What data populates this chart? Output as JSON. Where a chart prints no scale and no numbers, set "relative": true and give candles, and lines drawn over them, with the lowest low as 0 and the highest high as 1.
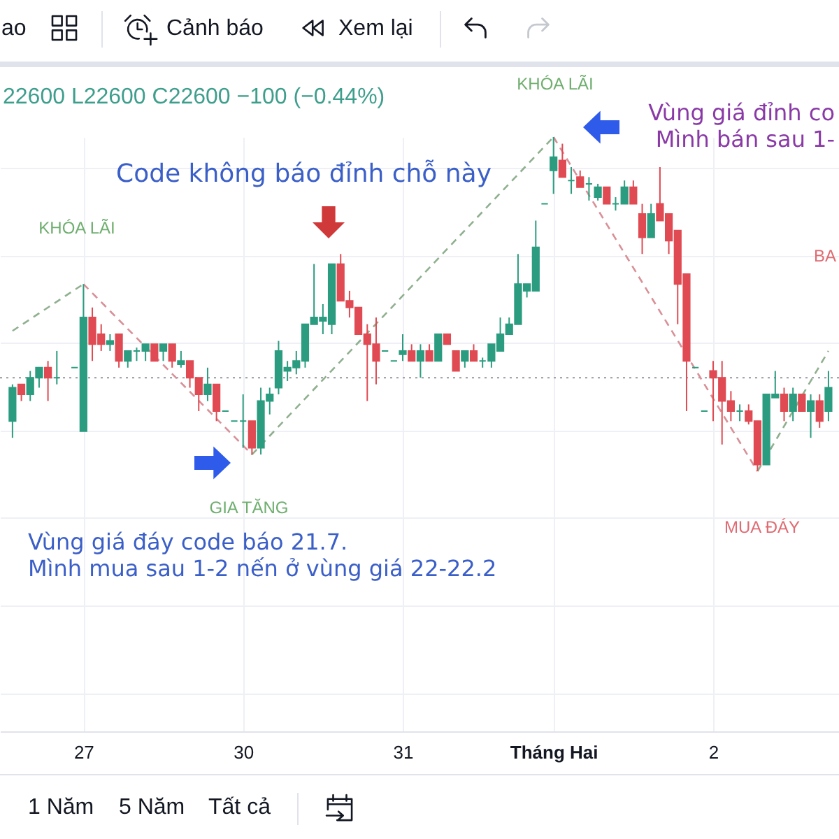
{
  "chart_data": {
    "type": "candlestick",
    "relative": true,
    "grid": true,
    "categories": [
      null,
      null,
      null,
      null,
      null,
      null,
      null,
      null,
      "27",
      null,
      null,
      null,
      null,
      null,
      null,
      null,
      null,
      null,
      null,
      null,
      null,
      null,
      null,
      null,
      null,
      null,
      "30",
      null,
      null,
      null,
      null,
      null,
      null,
      null,
      null,
      null,
      null,
      null,
      null,
      null,
      null,
      null,
      null,
      null,
      "31",
      null,
      null,
      null,
      null,
      null,
      null,
      null,
      null,
      null,
      null,
      null,
      null,
      null,
      null,
      null,
      null,
      "Tháng Hai",
      null,
      null,
      null,
      null,
      null,
      null,
      null,
      null,
      null,
      null,
      null,
      null,
      null,
      null,
      null,
      null,
      null,
      "2",
      null,
      null,
      null,
      null,
      null,
      null,
      null,
      null,
      null,
      null,
      null,
      null,
      null
    ],
    "ohlc": [
      [
        0.15,
        0.26,
        0.1,
        0.25
      ],
      [
        0.26,
        0.26,
        0.21,
        0.23
      ],
      [
        0.23,
        0.3,
        0.21,
        0.28
      ],
      [
        0.28,
        0.31,
        0.25,
        0.31
      ],
      [
        0.31,
        0.33,
        0.21,
        0.28
      ],
      [
        0.28,
        0.36,
        0.26,
        0.28
      ],
      null,
      [
        0.31,
        0.31,
        0.31,
        0.31
      ],
      [
        0.12,
        0.56,
        0.12,
        0.46
      ],
      [
        0.46,
        0.49,
        0.33,
        0.38
      ],
      [
        0.41,
        0.44,
        0.36,
        0.38
      ],
      [
        0.38,
        0.41,
        0.36,
        0.39
      ],
      [
        0.41,
        0.41,
        0.31,
        0.33
      ],
      [
        0.33,
        0.36,
        0.31,
        0.36
      ],
      [
        0.36,
        0.37,
        0.33,
        0.36
      ],
      [
        0.36,
        0.38,
        0.33,
        0.38
      ],
      [
        0.38,
        0.38,
        0.33,
        0.33
      ],
      [
        0.36,
        0.38,
        0.33,
        0.38
      ],
      [
        0.38,
        0.38,
        0.31,
        0.33
      ],
      [
        0.32,
        0.36,
        0.31,
        0.33
      ],
      [
        0.33,
        0.33,
        0.25,
        0.28
      ],
      [
        0.28,
        0.28,
        0.18,
        0.23
      ],
      [
        0.23,
        0.31,
        0.21,
        0.26
      ],
      [
        0.26,
        0.26,
        0.15,
        0.18
      ],
      [
        0.18,
        0.18,
        0.18,
        0.18
      ],
      [
        0.15,
        0.15,
        0.15,
        0.15
      ],
      [
        0.15,
        0.23,
        0.07,
        0.15
      ],
      [
        0.15,
        0.15,
        0.05,
        0.07
      ],
      [
        0.07,
        0.25,
        0.05,
        0.21
      ],
      [
        0.21,
        0.25,
        0.17,
        0.23
      ],
      [
        0.25,
        0.39,
        0.23,
        0.36
      ],
      [
        0.3,
        0.33,
        0.27,
        0.31
      ],
      [
        0.31,
        0.36,
        0.29,
        0.33
      ],
      [
        0.33,
        0.44,
        0.31,
        0.44
      ],
      [
        0.44,
        0.62,
        0.44,
        0.46
      ],
      [
        0.45,
        0.5,
        0.41,
        0.46
      ],
      [
        0.44,
        0.62,
        0.41,
        0.62
      ],
      [
        0.62,
        0.65,
        0.51,
        0.51
      ],
      [
        0.51,
        0.54,
        0.46,
        0.49
      ],
      [
        0.49,
        0.49,
        0.41,
        0.41
      ],
      [
        0.41,
        0.44,
        0.21,
        0.38
      ],
      [
        0.38,
        0.46,
        0.26,
        0.33
      ],
      [
        0.36,
        0.36,
        0.36,
        0.36
      ],
      [
        0.33,
        0.33,
        0.33,
        0.33
      ],
      [
        0.35,
        0.41,
        0.33,
        0.36
      ],
      [
        0.36,
        0.38,
        0.33,
        0.33
      ],
      [
        0.33,
        0.38,
        0.28,
        0.36
      ],
      [
        0.36,
        0.38,
        0.33,
        0.33
      ],
      [
        0.33,
        0.41,
        0.33,
        0.41
      ],
      [
        0.41,
        0.41,
        0.38,
        0.38
      ],
      [
        0.36,
        0.36,
        0.3,
        0.3
      ],
      [
        0.33,
        0.36,
        0.31,
        0.36
      ],
      [
        0.36,
        0.38,
        0.33,
        0.33
      ],
      [
        0.33,
        0.34,
        0.31,
        0.33
      ],
      [
        0.33,
        0.38,
        0.31,
        0.38
      ],
      [
        0.36,
        0.46,
        0.36,
        0.41
      ],
      [
        0.41,
        0.46,
        0.41,
        0.44
      ],
      [
        0.44,
        0.65,
        0.44,
        0.56
      ],
      [
        0.54,
        0.56,
        0.52,
        0.56
      ],
      [
        0.54,
        0.75,
        0.54,
        0.67
      ],
      [
        0.8,
        0.8,
        0.8,
        0.8
      ],
      [
        0.9,
        1.0,
        0.83,
        0.94
      ],
      [
        0.93,
        0.98,
        0.88,
        0.88
      ],
      [
        0.87,
        0.91,
        0.83,
        0.87
      ],
      [
        0.88,
        0.9,
        0.85,
        0.85
      ],
      [
        0.86,
        0.88,
        0.81,
        0.86
      ],
      [
        0.82,
        0.86,
        0.81,
        0.85
      ],
      [
        0.85,
        0.85,
        0.8,
        0.8
      ],
      [
        0.8,
        0.82,
        0.78,
        0.8
      ],
      [
        0.8,
        0.87,
        0.8,
        0.85
      ],
      [
        0.85,
        0.87,
        0.8,
        0.8
      ],
      [
        0.77,
        0.8,
        0.65,
        0.7
      ],
      [
        0.7,
        0.8,
        0.7,
        0.77
      ],
      [
        0.8,
        0.91,
        0.75,
        0.75
      ],
      [
        0.77,
        0.77,
        0.65,
        0.69
      ],
      [
        0.72,
        0.72,
        0.44,
        0.56
      ],
      [
        0.59,
        0.59,
        0.18,
        0.33
      ],
      [
        0.31,
        0.31,
        0.31,
        0.31
      ],
      [
        0.18,
        0.18,
        0.18,
        0.18
      ],
      [
        0.3,
        0.33,
        0.15,
        0.28
      ],
      [
        0.28,
        0.33,
        0.08,
        0.21
      ],
      [
        0.21,
        0.24,
        0.15,
        0.18
      ],
      [
        0.18,
        0.2,
        0.15,
        0.18
      ],
      [
        0.18,
        0.2,
        0.14,
        0.15
      ],
      [
        0.15,
        0.15,
        0.0,
        0.02
      ],
      [
        0.02,
        0.23,
        0.02,
        0.23
      ],
      [
        0.22,
        0.3,
        0.22,
        0.23
      ],
      [
        0.23,
        0.25,
        0.15,
        0.18
      ],
      [
        0.18,
        0.25,
        0.15,
        0.23
      ],
      [
        0.23,
        0.23,
        0.18,
        0.18
      ],
      [
        0.18,
        0.23,
        0.1,
        0.21
      ],
      [
        0.21,
        0.23,
        0.13,
        0.15
      ],
      [
        0.18,
        0.3,
        0.15,
        0.25
      ]
    ],
    "colors": [
      "#2b9c7f",
      "#e04a52",
      "#2b9c7f",
      "#2b9c7f",
      "#e04a52",
      "#2b9c7f",
      null,
      "#2b9c7f",
      "#2b9c7f",
      "#e04a52",
      "#e04a52",
      "#2b9c7f",
      "#e04a52",
      "#2b9c7f",
      "#2b9c7f",
      "#2b9c7f",
      "#e04a52",
      "#2b9c7f",
      "#e04a52",
      "#2b9c7f",
      "#e04a52",
      "#e04a52",
      "#2b9c7f",
      "#e04a52",
      "#2b9c7f",
      "#2b9c7f",
      "#2b9c7f",
      "#e04a52",
      "#2b9c7f",
      "#2b9c7f",
      "#2b9c7f",
      "#2b9c7f",
      "#2b9c7f",
      "#2b9c7f",
      "#2b9c7f",
      "#2b9c7f",
      "#2b9c7f",
      "#e04a52",
      "#e04a52",
      "#e04a52",
      "#e04a52",
      "#e04a52",
      "#2b9c7f",
      "#2b9c7f",
      "#2b9c7f",
      "#e04a52",
      "#2b9c7f",
      "#e04a52",
      "#2b9c7f",
      "#e04a52",
      "#e04a52",
      "#2b9c7f",
      "#e04a52",
      "#2b9c7f",
      "#2b9c7f",
      "#2b9c7f",
      "#2b9c7f",
      "#2b9c7f",
      "#2b9c7f",
      "#2b9c7f",
      "#2b9c7f",
      "#2b9c7f",
      "#e04a52",
      "#2b9c7f",
      "#e04a52",
      "#2b9c7f",
      "#2b9c7f",
      "#e04a52",
      "#2b9c7f",
      "#2b9c7f",
      "#e04a52",
      "#e04a52",
      "#2b9c7f",
      "#e04a52",
      "#e04a52",
      "#e04a52",
      "#e04a52",
      "#2b9c7f",
      "#2b9c7f",
      "#e04a52",
      "#e04a52",
      "#e04a52",
      "#2b9c7f",
      "#e04a52",
      "#e04a52",
      "#2b9c7f",
      "#2b9c7f",
      "#e04a52",
      "#2b9c7f",
      "#e04a52",
      "#2b9c7f",
      "#e04a52",
      "#2b9c7f"
    ],
    "series": [
      {
        "type": "line",
        "color": "#8fb08f",
        "line_style": "dashed",
        "values": [
          0.42,
          null,
          null,
          null,
          null,
          null,
          null,
          null,
          0.56,
          null,
          null,
          null,
          null,
          null,
          null,
          null,
          null,
          null,
          null,
          null,
          null,
          null,
          null,
          null,
          null,
          null,
          null,
          null,
          null,
          null,
          null,
          null,
          null,
          null,
          null,
          null,
          null,
          null,
          null,
          null,
          null,
          null,
          null,
          null,
          null,
          null,
          null,
          null,
          null,
          null,
          null,
          null,
          null,
          null,
          null,
          null,
          null,
          null,
          null,
          null,
          null,
          null,
          null,
          null,
          null,
          null,
          null,
          null,
          null,
          null,
          null,
          null,
          null,
          null,
          null,
          null,
          null,
          null,
          null,
          null,
          null,
          null,
          null,
          null,
          null,
          null,
          null,
          null,
          null,
          null,
          null,
          null,
          null
        ]
      },
      {
        "type": "line",
        "color": "#d99097",
        "line_style": "dashed",
        "values": [
          null,
          null,
          null,
          null,
          null,
          null,
          null,
          null,
          0.56,
          null,
          null,
          null,
          null,
          null,
          null,
          null,
          null,
          null,
          null,
          null,
          null,
          null,
          null,
          null,
          null,
          null,
          null,
          0.05,
          null,
          null,
          null,
          null,
          null,
          null,
          null,
          null,
          null,
          null,
          null,
          null,
          null,
          null,
          null,
          null,
          null,
          null,
          null,
          null,
          null,
          null,
          null,
          null,
          null,
          null,
          null,
          null,
          null,
          null,
          null,
          null,
          null,
          null,
          null,
          null,
          null,
          null,
          null,
          null,
          null,
          null,
          null,
          null,
          null,
          null,
          null,
          null,
          null,
          null,
          null,
          null,
          null,
          null,
          null,
          null,
          null,
          null,
          null,
          null,
          null,
          null,
          null,
          null,
          null
        ]
      },
      {
        "type": "line",
        "color": "#8fb08f",
        "line_style": "dashed",
        "values": [
          null,
          null,
          null,
          null,
          null,
          null,
          null,
          null,
          null,
          null,
          null,
          null,
          null,
          null,
          null,
          null,
          null,
          null,
          null,
          null,
          null,
          null,
          null,
          null,
          null,
          null,
          null,
          0.05,
          null,
          null,
          null,
          null,
          null,
          null,
          null,
          null,
          null,
          null,
          null,
          null,
          null,
          null,
          null,
          null,
          null,
          null,
          null,
          null,
          null,
          null,
          null,
          null,
          null,
          null,
          null,
          null,
          null,
          null,
          null,
          null,
          null,
          1.0,
          null,
          null,
          null,
          null,
          null,
          null,
          null,
          null,
          null,
          null,
          null,
          null,
          null,
          null,
          null,
          null,
          null,
          null,
          null,
          null,
          null,
          null,
          null,
          null,
          null,
          null,
          null,
          null,
          null,
          null,
          null
        ]
      },
      {
        "type": "line",
        "color": "#d99097",
        "line_style": "dashed",
        "values": [
          null,
          null,
          null,
          null,
          null,
          null,
          null,
          null,
          null,
          null,
          null,
          null,
          null,
          null,
          null,
          null,
          null,
          null,
          null,
          null,
          null,
          null,
          null,
          null,
          null,
          null,
          null,
          null,
          null,
          null,
          null,
          null,
          null,
          null,
          null,
          null,
          null,
          null,
          null,
          null,
          null,
          null,
          null,
          null,
          null,
          null,
          null,
          null,
          null,
          null,
          null,
          null,
          null,
          null,
          null,
          null,
          null,
          null,
          null,
          null,
          null,
          1.0,
          null,
          null,
          null,
          null,
          null,
          null,
          null,
          null,
          null,
          null,
          null,
          null,
          null,
          null,
          null,
          null,
          null,
          null,
          null,
          null,
          null,
          null,
          0.0,
          null,
          null,
          null,
          null,
          null,
          null,
          null,
          null
        ]
      },
      {
        "type": "line",
        "color": "#8fb08f",
        "line_style": "dashed",
        "values": [
          null,
          null,
          null,
          null,
          null,
          null,
          null,
          null,
          null,
          null,
          null,
          null,
          null,
          null,
          null,
          null,
          null,
          null,
          null,
          null,
          null,
          null,
          null,
          null,
          null,
          null,
          null,
          null,
          null,
          null,
          null,
          null,
          null,
          null,
          null,
          null,
          null,
          null,
          null,
          null,
          null,
          null,
          null,
          null,
          null,
          null,
          null,
          null,
          null,
          null,
          null,
          null,
          null,
          null,
          null,
          null,
          null,
          null,
          null,
          null,
          null,
          null,
          null,
          null,
          null,
          null,
          null,
          null,
          null,
          null,
          null,
          null,
          null,
          null,
          null,
          null,
          null,
          null,
          null,
          null,
          null,
          null,
          null,
          null,
          0.0,
          null,
          null,
          null,
          null,
          null,
          null,
          null,
          0.36
        ]
      }
    ],
    "ref_lines": [
      {
        "axis": "y",
        "value": 0.28,
        "color": "#9598a1",
        "line_style": "dotted"
      }
    ],
    "annotations": [
      "Code không báo đỉnh chỗ này",
      "KHÓA LÃI",
      "KHÓA LÃI",
      "Vùng giá đỉnh co",
      "Mình bán sau 1-",
      "BA",
      "GIA TĂNG",
      "MUA ĐÁY",
      "Vùng giá đáy code báo 21.7.",
      "Mình mua sau 1-2 nến ở vùng giá 22-22.2",
      "22600 L22600 C22600 −100 (−0.44%)",
      "ao",
      "Cảnh báo",
      "Xem lại",
      "1 Năm",
      "5 Năm",
      "Tất cả"
    ]
  }
}
